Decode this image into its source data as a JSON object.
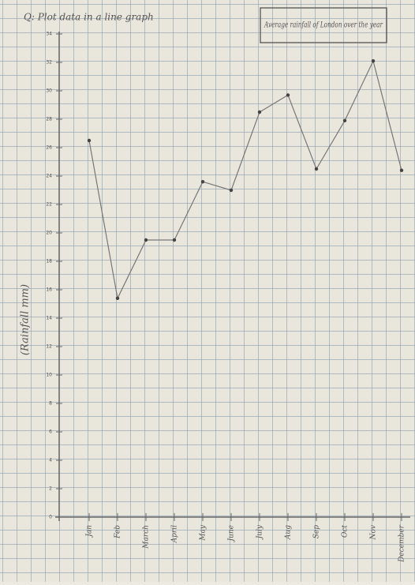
{
  "chart_data": {
    "type": "line",
    "title": "Q: Plot data in a line graph",
    "subtitle": "Average rainfall of London over the year",
    "y_label": "(Rainfall mm)",
    "categories": [
      "Jan",
      "Feb",
      "March",
      "April",
      "May",
      "June",
      "July",
      "Aug",
      "Sep",
      "Oct",
      "Nov",
      "December"
    ],
    "values": [
      26.5,
      15.4,
      19.5,
      19.5,
      23.6,
      23,
      28.5,
      29.7,
      24.5,
      27.9,
      32.1,
      24.4
    ],
    "color": "#777777",
    "ylim": [
      0,
      34
    ],
    "yticks": [
      0,
      2,
      4,
      6,
      8,
      10,
      12,
      14,
      16,
      18,
      20,
      22,
      24,
      26,
      28,
      30,
      32,
      34
    ]
  }
}
